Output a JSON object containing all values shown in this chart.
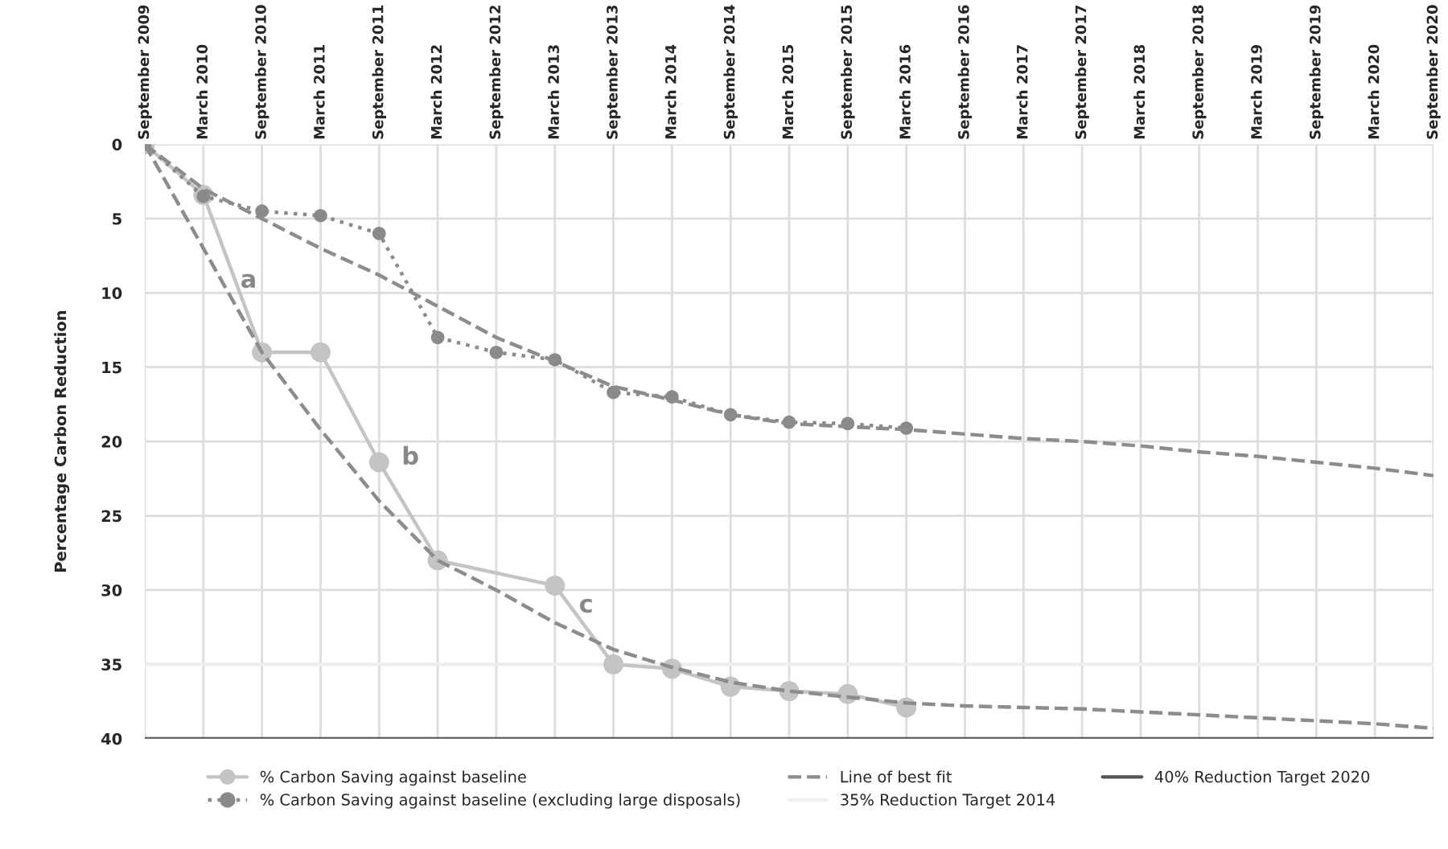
{
  "chart_data": {
    "type": "line",
    "ylabel": "Percentage Carbon Reduction",
    "categories": [
      "September 2009",
      "March 2010",
      "September 2010",
      "March 2011",
      "September 2011",
      "March 2012",
      "September 2012",
      "March 2013",
      "September 2013",
      "March 2014",
      "September 2014",
      "March 2015",
      "September 2015",
      "March 2016",
      "September 2016",
      "March 2017",
      "September 2017",
      "March 2018",
      "September 2018",
      "March 2019",
      "September 2019",
      "March 2020",
      "September 2020"
    ],
    "series": [
      {
        "name": "% Carbon Saving against baseline",
        "color": "#c4c4c4",
        "marker": "circle",
        "line_style": "solid",
        "values": [
          0,
          3.4,
          14,
          14,
          21.4,
          28,
          null,
          29.7,
          35,
          35.3,
          36.5,
          36.8,
          37.0,
          37.9,
          null,
          null,
          null,
          null,
          null,
          null,
          null,
          null,
          null
        ]
      },
      {
        "name": "% Carbon Saving against baseline (excluding large disposals)",
        "color": "#8a8a8a",
        "marker": "circle",
        "line_style": "dotted",
        "values": [
          0,
          3.5,
          4.5,
          4.8,
          6.0,
          13,
          14,
          14.5,
          16.7,
          17,
          18.2,
          18.7,
          18.8,
          19.1,
          null,
          null,
          null,
          null,
          null,
          null,
          null,
          null,
          null
        ]
      },
      {
        "name": "Line of best fit",
        "color": "#8c8c8c",
        "marker": "none",
        "line_style": "dashed",
        "values": [
          0,
          3,
          5,
          7,
          8.8,
          10.9,
          13,
          14.6,
          16.3,
          17.2,
          18.2,
          18.8,
          19.0,
          19.2,
          19.5,
          19.8,
          20.0,
          20.3,
          20.7,
          21.0,
          21.4,
          21.8,
          22.3
        ]
      },
      {
        "color": "#8c8c8c",
        "marker": "none",
        "line_style": "dashed",
        "values": [
          0,
          7,
          14,
          19.2,
          24,
          28,
          30,
          32.2,
          34,
          35.2,
          36.2,
          36.8,
          37.2,
          37.6,
          37.8,
          37.9,
          38.0,
          38.2,
          38.4,
          38.6,
          38.8,
          39.0,
          39.3
        ]
      }
    ],
    "ref_lines": [
      {
        "axis": "y",
        "value": 35,
        "label": "35% Reduction Target 2014",
        "color": "#eeeeee",
        "line_style": "solid"
      },
      {
        "axis": "y",
        "value": 40,
        "label": "40% Reduction Target 2020",
        "color": "#555555",
        "line_style": "solid"
      }
    ],
    "annotations": [
      {
        "text": "a",
        "x": "September 2010",
        "y": 14
      },
      {
        "text": "b",
        "x": "September 2011",
        "y": 21.4
      },
      {
        "text": "c",
        "x": "March 2013",
        "y": 29.7
      }
    ],
    "ylim": [
      40,
      0
    ],
    "yticks": [
      0,
      5,
      10,
      15,
      20,
      25,
      30,
      35,
      40
    ],
    "grid": true,
    "legend": "bottom"
  }
}
